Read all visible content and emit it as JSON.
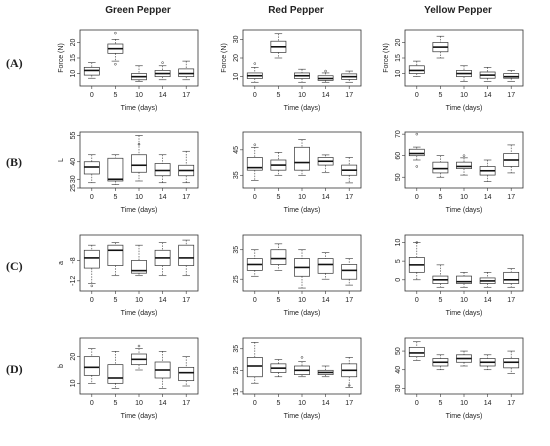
{
  "column_titles": [
    "Green Pepper",
    "Red Pepper",
    "Yellow Pepper"
  ],
  "row_labels": [
    "(A)",
    "(B)",
    "(C)",
    "(D)"
  ],
  "chart_data": {
    "type": "boxplot",
    "categories": [
      "0",
      "5",
      "10",
      "14",
      "17"
    ],
    "xlabel": "Time (days)",
    "panels": [
      {
        "row": 0,
        "col": 0,
        "ylabel": "Force (N)",
        "ylim": [
          6,
          24
        ],
        "yticks": [
          10,
          15,
          20
        ],
        "boxes": [
          {
            "min": 8.5,
            "q1": 9.5,
            "median": 11,
            "q3": 12,
            "max": 13.5,
            "outliers": []
          },
          {
            "min": 14,
            "q1": 16.5,
            "median": 18,
            "q3": 19.5,
            "max": 21,
            "outliers": [
              23,
              13
            ]
          },
          {
            "min": 7.5,
            "q1": 8,
            "median": 9,
            "q3": 10,
            "max": 12.5,
            "outliers": []
          },
          {
            "min": 8,
            "q1": 9,
            "median": 10,
            "q3": 11,
            "max": 12.5,
            "outliers": [
              13.5
            ]
          },
          {
            "min": 8,
            "q1": 9,
            "median": 10,
            "q3": 11.5,
            "max": 14,
            "outliers": []
          }
        ]
      },
      {
        "row": 0,
        "col": 1,
        "ylabel": "Force (N)",
        "ylim": [
          5,
          35
        ],
        "yticks": [
          10,
          20,
          30
        ],
        "boxes": [
          {
            "min": 7,
            "q1": 9,
            "median": 10.5,
            "q3": 12,
            "max": 15,
            "outliers": [
              17
            ]
          },
          {
            "min": 20,
            "q1": 23,
            "median": 26,
            "q3": 29,
            "max": 33,
            "outliers": []
          },
          {
            "min": 7,
            "q1": 9,
            "median": 10.5,
            "q3": 12,
            "max": 14,
            "outliers": []
          },
          {
            "min": 7,
            "q1": 8,
            "median": 9,
            "q3": 10.5,
            "max": 12,
            "outliers": [
              13
            ]
          },
          {
            "min": 7,
            "q1": 8.5,
            "median": 10,
            "q3": 11.5,
            "max": 13,
            "outliers": []
          }
        ]
      },
      {
        "row": 0,
        "col": 2,
        "ylabel": "Force (N)",
        "ylim": [
          6,
          24
        ],
        "yticks": [
          10,
          15,
          20
        ],
        "boxes": [
          {
            "min": 9,
            "q1": 10,
            "median": 11,
            "q3": 12.5,
            "max": 14,
            "outliers": []
          },
          {
            "min": 15,
            "q1": 17,
            "median": 18.5,
            "q3": 20,
            "max": 22,
            "outliers": []
          },
          {
            "min": 7.5,
            "q1": 9,
            "median": 10,
            "q3": 11,
            "max": 12.5,
            "outliers": []
          },
          {
            "min": 7.5,
            "q1": 8.5,
            "median": 9.5,
            "q3": 10.5,
            "max": 12,
            "outliers": []
          },
          {
            "min": 7.5,
            "q1": 8.5,
            "median": 9,
            "q3": 10,
            "max": 11,
            "outliers": []
          }
        ]
      },
      {
        "row": 1,
        "col": 0,
        "ylabel": "L",
        "ylim": [
          25,
          57
        ],
        "yticks": [
          25,
          30,
          40,
          55
        ],
        "boxes": [
          {
            "min": 28,
            "q1": 33,
            "median": 37,
            "q3": 40,
            "max": 44,
            "outliers": []
          },
          {
            "min": 27,
            "q1": 29,
            "median": 30,
            "q3": 42,
            "max": 44,
            "outliers": []
          },
          {
            "min": 29,
            "q1": 34,
            "median": 38,
            "q3": 44,
            "max": 55,
            "outliers": [
              50
            ]
          },
          {
            "min": 28,
            "q1": 32,
            "median": 35,
            "q3": 39,
            "max": 44,
            "outliers": []
          },
          {
            "min": 28,
            "q1": 32,
            "median": 35,
            "q3": 38,
            "max": 46,
            "outliers": []
          }
        ]
      },
      {
        "row": 1,
        "col": 1,
        "ylabel": "",
        "ylim": [
          30,
          52
        ],
        "yticks": [
          35,
          45
        ],
        "boxes": [
          {
            "min": 33,
            "q1": 37,
            "median": 38,
            "q3": 42,
            "max": 46,
            "outliers": [
              47
            ]
          },
          {
            "min": 35,
            "q1": 37,
            "median": 39,
            "q3": 41,
            "max": 44,
            "outliers": []
          },
          {
            "min": 35,
            "q1": 37,
            "median": 40,
            "q3": 46,
            "max": 49,
            "outliers": []
          },
          {
            "min": 36,
            "q1": 39,
            "median": 40.5,
            "q3": 42,
            "max": 43,
            "outliers": []
          },
          {
            "min": 32,
            "q1": 35,
            "median": 37,
            "q3": 39,
            "max": 42,
            "outliers": []
          }
        ]
      },
      {
        "row": 1,
        "col": 2,
        "ylabel": "",
        "ylim": [
          45,
          71
        ],
        "yticks": [
          50,
          60,
          70
        ],
        "boxes": [
          {
            "min": 58,
            "q1": 60,
            "median": 61,
            "q3": 63,
            "max": 64,
            "outliers": [
              70,
              55
            ]
          },
          {
            "min": 50,
            "q1": 52,
            "median": 54,
            "q3": 57,
            "max": 60,
            "outliers": []
          },
          {
            "min": 51,
            "q1": 54,
            "median": 55,
            "q3": 57,
            "max": 59,
            "outliers": [
              60
            ]
          },
          {
            "min": 48,
            "q1": 51,
            "median": 53,
            "q3": 55,
            "max": 58,
            "outliers": []
          },
          {
            "min": 52,
            "q1": 55,
            "median": 58,
            "q3": 61,
            "max": 65,
            "outliers": []
          }
        ]
      },
      {
        "row": 2,
        "col": 0,
        "ylabel": "a",
        "ylim": [
          -14,
          -3
        ],
        "yticks": [
          -12,
          -8
        ],
        "boxes": [
          {
            "min": -12.5,
            "q1": -9.5,
            "median": -7.5,
            "q3": -6,
            "max": -5,
            "outliers": [
              -13
            ]
          },
          {
            "min": -11,
            "q1": -9,
            "median": -6,
            "q3": -5,
            "max": -4.5,
            "outliers": []
          },
          {
            "min": -11,
            "q1": -10.5,
            "median": -10,
            "q3": -8,
            "max": -5,
            "outliers": []
          },
          {
            "min": -11,
            "q1": -9,
            "median": -7.5,
            "q3": -6,
            "max": -4.5,
            "outliers": []
          },
          {
            "min": -11,
            "q1": -9,
            "median": -7.5,
            "q3": -5,
            "max": -4,
            "outliers": []
          }
        ]
      },
      {
        "row": 2,
        "col": 1,
        "ylabel": "",
        "ylim": [
          21,
          40
        ],
        "yticks": [
          25,
          35
        ],
        "boxes": [
          {
            "min": 26,
            "q1": 28,
            "median": 30,
            "q3": 32,
            "max": 35,
            "outliers": []
          },
          {
            "min": 28,
            "q1": 30,
            "median": 32,
            "q3": 35,
            "max": 37,
            "outliers": []
          },
          {
            "min": 22,
            "q1": 26,
            "median": 29,
            "q3": 32,
            "max": 35,
            "outliers": []
          },
          {
            "min": 25,
            "q1": 27,
            "median": 30,
            "q3": 32,
            "max": 34,
            "outliers": []
          },
          {
            "min": 23,
            "q1": 25,
            "median": 28,
            "q3": 30,
            "max": 32,
            "outliers": []
          }
        ]
      },
      {
        "row": 2,
        "col": 2,
        "ylabel": "",
        "ylim": [
          -3,
          12
        ],
        "yticks": [
          0,
          5,
          10
        ],
        "boxes": [
          {
            "min": 0,
            "q1": 2,
            "median": 4,
            "q3": 6,
            "max": 10,
            "outliers": [
              10
            ]
          },
          {
            "min": -2,
            "q1": -1,
            "median": 0,
            "q3": 1,
            "max": 4,
            "outliers": []
          },
          {
            "min": -2,
            "q1": -1,
            "median": -0.5,
            "q3": 1,
            "max": 2,
            "outliers": []
          },
          {
            "min": -2,
            "q1": -1,
            "median": -0.3,
            "q3": 0.5,
            "max": 2,
            "outliers": []
          },
          {
            "min": -2,
            "q1": -1,
            "median": 0,
            "q3": 2,
            "max": 3,
            "outliers": []
          }
        ]
      },
      {
        "row": 3,
        "col": 0,
        "ylabel": "b",
        "ylim": [
          6,
          27
        ],
        "yticks": [
          10,
          20
        ],
        "boxes": [
          {
            "min": 10,
            "q1": 13,
            "median": 16,
            "q3": 20,
            "max": 23,
            "outliers": []
          },
          {
            "min": 8,
            "q1": 10,
            "median": 12,
            "q3": 17,
            "max": 22,
            "outliers": []
          },
          {
            "min": 15,
            "q1": 17,
            "median": 19,
            "q3": 21,
            "max": 23,
            "outliers": [
              24
            ]
          },
          {
            "min": 8,
            "q1": 12,
            "median": 15,
            "q3": 18,
            "max": 22,
            "outliers": []
          },
          {
            "min": 9,
            "q1": 11,
            "median": 14,
            "q3": 16,
            "max": 20,
            "outliers": []
          }
        ]
      },
      {
        "row": 3,
        "col": 1,
        "ylabel": "",
        "ylim": [
          14,
          40
        ],
        "yticks": [
          15,
          25,
          35
        ],
        "boxes": [
          {
            "min": 19,
            "q1": 22,
            "median": 27,
            "q3": 31,
            "max": 38,
            "outliers": []
          },
          {
            "min": 22,
            "q1": 24,
            "median": 26,
            "q3": 28,
            "max": 30,
            "outliers": []
          },
          {
            "min": 22,
            "q1": 23,
            "median": 25,
            "q3": 27,
            "max": 29,
            "outliers": [
              31
            ]
          },
          {
            "min": 22,
            "q1": 23,
            "median": 24,
            "q3": 25,
            "max": 27,
            "outliers": []
          },
          {
            "min": 17,
            "q1": 22,
            "median": 25,
            "q3": 28,
            "max": 31,
            "outliers": [
              18
            ]
          }
        ]
      },
      {
        "row": 3,
        "col": 2,
        "ylabel": "",
        "ylim": [
          27,
          57
        ],
        "yticks": [
          30,
          40,
          50
        ],
        "boxes": [
          {
            "min": 45,
            "q1": 47,
            "median": 49,
            "q3": 52,
            "max": 55,
            "outliers": []
          },
          {
            "min": 40,
            "q1": 42,
            "median": 44,
            "q3": 46,
            "max": 48,
            "outliers": []
          },
          {
            "min": 42,
            "q1": 44,
            "median": 46,
            "q3": 48,
            "max": 50,
            "outliers": []
          },
          {
            "min": 40,
            "q1": 42,
            "median": 44,
            "q3": 46,
            "max": 48,
            "outliers": []
          },
          {
            "min": 38,
            "q1": 41,
            "median": 44,
            "q3": 46,
            "max": 50,
            "outliers": []
          }
        ]
      }
    ]
  }
}
